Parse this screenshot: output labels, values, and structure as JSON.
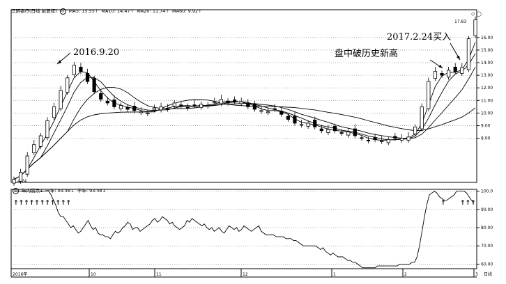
{
  "main_header": {
    "stock": "江阴银行(日线 前复权)",
    "ma5": "MA5: 15.55↑",
    "ma10": "MA10: 14.47↑",
    "ma20": "MA20: 11.74↑",
    "ma60": "MA60: 9.92↑"
  },
  "sub_header": {
    "indicator": "年内高点1",
    "year": "一年: 93.48↓",
    "half": "半年: 93.48↓"
  },
  "annotations": {
    "low_label": "4.74",
    "high_label": "17.83",
    "a1": "2016.9.20",
    "a2": "2017.2.24买入",
    "a3": "盘中破历史新高"
  },
  "x_axis": {
    "labels": [
      "2016年",
      "10",
      "11",
      "12",
      "1",
      "2",
      "3"
    ],
    "suffix": "日线"
  },
  "colors": {
    "grid": "#9a9a9a",
    "line": "#000000"
  },
  "chart_data": [
    {
      "type": "candlestick",
      "title": "江阴银行(日线 前复权)",
      "ylim": [
        4.5,
        18.2
      ],
      "y_ticks": [
        "8.00",
        "9.00",
        "10.00",
        "11.00",
        "12.00",
        "13.00",
        "14.00",
        "15.00",
        "16.00"
      ],
      "x_tick_labels": [
        "2016年",
        "10",
        "11",
        "12",
        "1",
        "2",
        "3"
      ],
      "series": [
        {
          "name": "MA5",
          "last": 15.55
        },
        {
          "name": "MA10",
          "last": 14.47
        },
        {
          "name": "MA20",
          "last": 11.74
        },
        {
          "name": "MA60",
          "last": 9.92
        }
      ],
      "annotations": [
        "2016.9.20",
        "2017.2.24买入",
        "盘中破历史新高"
      ],
      "close_trace": [
        4.74,
        5.3,
        6.6,
        7.5,
        8.2,
        9.4,
        10.5,
        11.8,
        12.8,
        13.8,
        13.3,
        12.5,
        11.7,
        11.1,
        10.8,
        10.5,
        10.6,
        10.3,
        10.2,
        10.1,
        10.0,
        10.4,
        10.5,
        10.3,
        10.8,
        10.6,
        10.4,
        10.6,
        10.7,
        10.6,
        10.9,
        11.1,
        10.8,
        10.9,
        10.9,
        10.5,
        10.3,
        10.2,
        10.1,
        10.3,
        9.9,
        9.5,
        9.2,
        9.1,
        9.2,
        8.9,
        8.6,
        8.7,
        8.6,
        8.4,
        8.5,
        8.2,
        8.0,
        7.8,
        7.9,
        7.8,
        7.9,
        8.0,
        8.0,
        8.1,
        8.9,
        10.5,
        12.5,
        13.3,
        13.0,
        13.4,
        13.3,
        13.6,
        15.9,
        17.4
      ]
    },
    {
      "type": "line",
      "title": "年内高点1",
      "ylim": [
        57.5,
        101
      ],
      "y_ticks": [
        "60.00",
        "70.00",
        "80.00",
        "90.00",
        "100.0"
      ],
      "series": [
        {
          "name": "一年",
          "last": 93.48
        },
        {
          "name": "半年",
          "last": 93.48
        }
      ],
      "values": [
        100,
        100,
        100,
        100,
        100,
        100,
        100,
        100,
        100,
        100,
        100,
        100,
        100,
        100,
        100,
        98,
        95,
        92,
        88,
        86,
        86,
        84,
        82,
        80,
        81,
        79,
        77,
        78,
        80,
        82,
        84,
        81,
        79,
        80,
        77,
        76,
        76,
        75,
        75,
        74,
        76,
        78,
        77,
        78,
        80,
        81,
        83,
        82,
        79,
        80,
        80,
        78,
        79,
        80,
        81,
        82,
        84,
        85,
        83,
        84,
        86,
        85,
        84,
        82,
        83,
        81,
        80,
        79,
        80,
        81,
        84,
        83,
        85,
        84,
        83,
        82,
        81,
        82,
        80,
        79,
        80,
        78,
        79,
        80,
        78,
        77,
        79,
        81,
        80,
        79,
        80,
        78,
        79,
        81,
        80,
        79,
        78,
        79,
        80,
        81,
        78,
        77,
        76,
        76,
        76,
        76,
        75,
        75,
        75,
        75,
        74,
        74,
        74,
        73,
        73,
        72,
        71,
        70,
        70,
        70,
        70,
        70,
        70,
        69,
        68,
        69,
        67,
        66,
        65,
        66,
        65,
        64,
        64,
        64,
        63,
        62,
        62,
        61,
        61,
        60,
        59,
        58,
        58,
        58,
        58,
        58,
        58,
        59,
        59,
        59,
        59,
        59,
        59,
        59,
        59,
        59,
        60,
        60,
        60,
        60,
        60,
        61,
        61,
        64,
        70,
        78,
        86,
        93,
        98,
        99,
        100,
        99,
        97,
        96,
        95,
        95,
        96,
        97,
        98,
        100,
        100,
        100,
        100,
        99,
        97,
        95,
        93.48
      ],
      "arrow_marks": "↑↑↑↑↑↑↑↑↑↑↑"
    }
  ]
}
